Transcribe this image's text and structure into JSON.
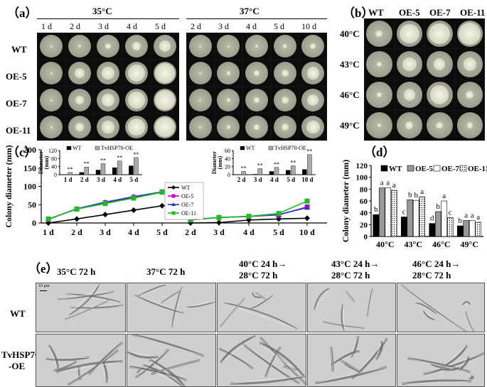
{
  "panels": {
    "a": "（a）",
    "b": "（b）",
    "c": "（c）",
    "d": "（d）",
    "e": "（e）"
  },
  "panel_a": {
    "temp_35": "35°C",
    "temp_37": "37°C",
    "days_35": [
      "1 d",
      "2 d",
      "3 d",
      "4 d",
      "5 d"
    ],
    "days_37": [
      "2 d",
      "3 d",
      "4 d",
      "5 d",
      "10 d"
    ],
    "rows": [
      "WT",
      "OE-5",
      "OE-7",
      "OE-11"
    ]
  },
  "panel_b": {
    "cols": [
      "WT",
      "OE-5",
      "OE-7",
      "OE-11"
    ],
    "rows": [
      "40°C",
      "43°C",
      "46°C",
      "49°C"
    ]
  },
  "panel_e": {
    "conditions": [
      "35°C  72 h",
      "37°C  72 h",
      "40°C 24 h→",
      "28°C 72 h",
      "43°C 24 h→",
      "28°C 72 h",
      "46°C 24 h→",
      "28°C 72 h"
    ],
    "rows": [
      "WT",
      "TvHSP70",
      "-OE"
    ],
    "scale": "10 μm"
  },
  "chart_data": [
    {
      "type": "line",
      "panel": "c",
      "ylabel": "Colony diameter (mm)",
      "ylim": [
        0,
        200
      ],
      "yticks": [
        "0",
        "50",
        "100",
        "150",
        "200"
      ],
      "groups": [
        {
          "x": [
            "1 d",
            "2 d",
            "3 d",
            "4 d",
            "5 d"
          ],
          "series": [
            {
              "name": "WT",
              "color": "#000000",
              "marker": "diamond",
              "values": [
                0,
                11,
                23,
                35,
                47
              ]
            },
            {
              "name": "OE-5",
              "color": "#cc00cc",
              "marker": "square",
              "values": [
                10,
                38,
                55,
                70,
                85
              ]
            },
            {
              "name": "OE-7",
              "color": "#1f3fbf",
              "marker": "triangle",
              "values": [
                10,
                39,
                57,
                72,
                85
              ]
            },
            {
              "name": "OE-11",
              "color": "#22bb22",
              "marker": "square",
              "values": [
                11,
                38,
                53,
                68,
                84
              ]
            }
          ]
        },
        {
          "x": [
            "2 d",
            "3 d",
            "4 d",
            "5 d",
            "10 d"
          ],
          "series": [
            {
              "name": "WT",
              "color": "#000000",
              "marker": "diamond",
              "values": [
                0,
                1,
                8,
                11,
                13
              ]
            },
            {
              "name": "OE-5",
              "color": "#cc00cc",
              "marker": "square",
              "values": [
                8,
                15,
                18,
                22,
                44
              ]
            },
            {
              "name": "OE-7",
              "color": "#1f3fbf",
              "marker": "triangle",
              "values": [
                9,
                15,
                18,
                23,
                42
              ]
            },
            {
              "name": "OE-11",
              "color": "#22bb22",
              "marker": "square",
              "values": [
                9,
                15,
                18,
                26,
                60
              ]
            }
          ]
        }
      ],
      "legend": [
        "WT",
        "OE-5",
        "OE-7",
        "OE-11"
      ]
    },
    {
      "type": "bar",
      "panel": "c-inset-1",
      "ylabel": "Diameter (mm)",
      "ylim": [
        0,
        120
      ],
      "yticks": [
        "0",
        "40",
        "80",
        "120"
      ],
      "categories": [
        "1 d",
        "2 d",
        "3 d",
        "4 d",
        "5 d"
      ],
      "series": [
        {
          "name": "WT",
          "color": "#000000",
          "values": [
            1,
            11,
            23,
            35,
            44
          ]
        },
        {
          "name": "TvHSP70-OE",
          "color": "#aaaaaa",
          "values": [
            11,
            38,
            55,
            68,
            85
          ]
        }
      ],
      "annotations": [
        "**",
        "**",
        "**",
        "**",
        "**"
      ],
      "legend": [
        "WT",
        "TvHSP70-OE"
      ]
    },
    {
      "type": "bar",
      "panel": "c-inset-2",
      "ylabel": "Diameter (mm)",
      "ylim": [
        0,
        60
      ],
      "yticks": [
        "0",
        "20",
        "40",
        "60"
      ],
      "categories": [
        "2 d",
        "3 d",
        "4 d",
        "5 d",
        "10 d"
      ],
      "series": [
        {
          "name": "WT",
          "color": "#000000",
          "values": [
            0,
            1,
            8,
            11,
            13
          ]
        },
        {
          "name": "TvHSP70-OE",
          "color": "#aaaaaa",
          "values": [
            8,
            15,
            18,
            22,
            50
          ]
        }
      ],
      "annotations": [
        "**",
        "**",
        "**",
        "**",
        "**"
      ],
      "legend": [
        "WT",
        "TvHSP70-OE"
      ]
    },
    {
      "type": "bar",
      "panel": "d",
      "ylabel": "Colony diameter (mm)",
      "ylim": [
        0,
        120
      ],
      "yticks": [
        "0",
        "20",
        "40",
        "60",
        "80",
        "100",
        "120"
      ],
      "categories": [
        "40°C",
        "43°C",
        "46°C",
        "49°C"
      ],
      "series": [
        {
          "name": "WT",
          "fill": "black",
          "values": [
            37,
            33,
            22,
            18
          ],
          "letters": [
            "b",
            "c",
            "d",
            "b"
          ]
        },
        {
          "name": "OE-5",
          "fill": "gray",
          "values": [
            82,
            62,
            42,
            27
          ],
          "letters": [
            "a",
            "b",
            "b",
            "a"
          ]
        },
        {
          "name": "OE-7",
          "fill": "white",
          "values": [
            82,
            61,
            60,
            27
          ],
          "letters": [
            "a",
            "b",
            "a",
            "a"
          ]
        },
        {
          "name": "OE-11",
          "fill": "dotted",
          "values": [
            78,
            67,
            32,
            24
          ],
          "letters": [
            "a",
            "a",
            "c",
            "a"
          ]
        }
      ],
      "legend": [
        "WT",
        "OE-5",
        "OE-7",
        "OE-11"
      ]
    }
  ]
}
